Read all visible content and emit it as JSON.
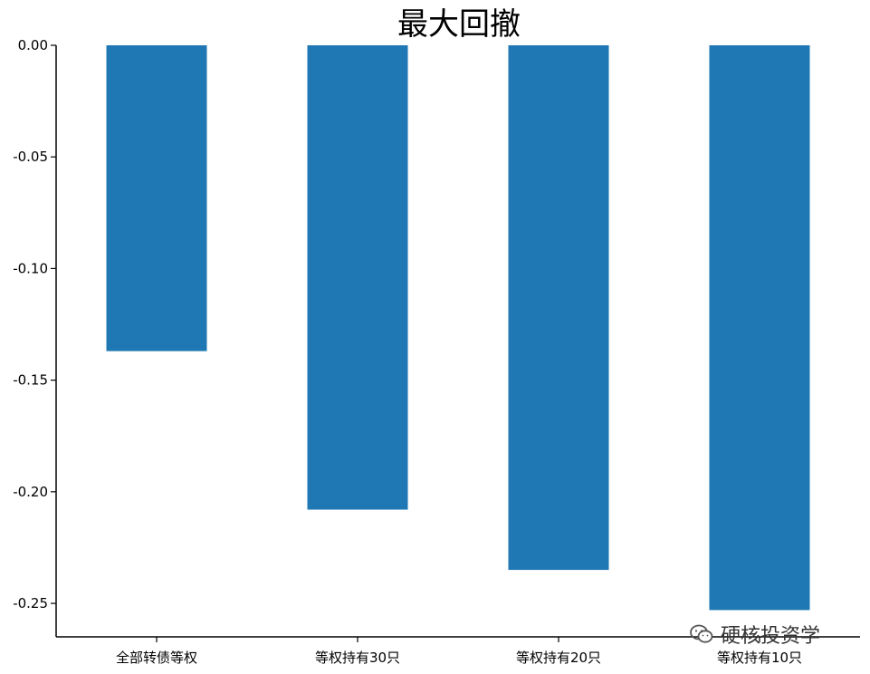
{
  "chart_data": {
    "type": "bar",
    "title": "最大回撤",
    "categories": [
      "全部转债等权",
      "等权持有30只",
      "等权持有20只",
      "等权持有10只"
    ],
    "values": [
      -0.137,
      -0.208,
      -0.235,
      -0.253
    ],
    "ylim": [
      -0.265,
      0.0
    ],
    "yticks": [
      0.0,
      -0.05,
      -0.1,
      -0.15,
      -0.2,
      -0.25
    ],
    "ytick_labels": [
      "0.00",
      "-0.05",
      "-0.10",
      "-0.15",
      "-0.20",
      "-0.25"
    ],
    "bar_color": "#1f77b4",
    "grid": false,
    "legend": "none"
  },
  "watermark": {
    "text": "硬核投资学",
    "icon": "wechat-icon"
  }
}
